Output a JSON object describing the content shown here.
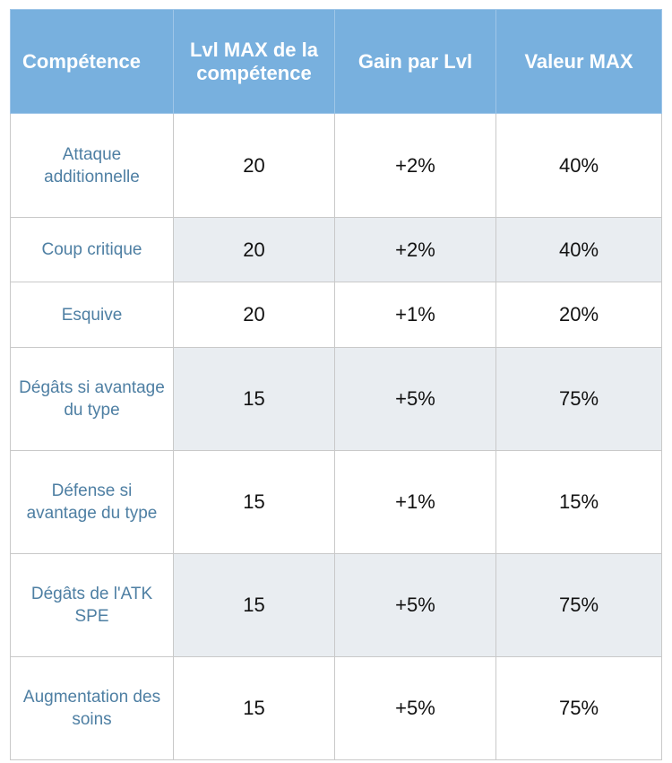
{
  "table": {
    "headers": [
      "Compétence",
      "Lvl MAX de la compétence",
      "Gain par Lvl",
      "Valeur MAX"
    ],
    "rows": [
      {
        "skill": "Attaque additionnelle",
        "lvl_max": "20",
        "gain": "+2%",
        "max_value": "40%"
      },
      {
        "skill": "Coup critique",
        "lvl_max": "20",
        "gain": "+2%",
        "max_value": "40%"
      },
      {
        "skill": "Esquive",
        "lvl_max": "20",
        "gain": "+1%",
        "max_value": "20%"
      },
      {
        "skill": "Dégâts si avantage du type",
        "lvl_max": "15",
        "gain": "+5%",
        "max_value": "75%"
      },
      {
        "skill": "Défense si avantage du type",
        "lvl_max": "15",
        "gain": "+1%",
        "max_value": "15%"
      },
      {
        "skill": "Dégâts de l'ATK SPE",
        "lvl_max": "15",
        "gain": "+5%",
        "max_value": "75%"
      },
      {
        "skill": "Augmentation des soins",
        "lvl_max": "15",
        "gain": "+5%",
        "max_value": "75%"
      }
    ]
  },
  "colors": {
    "header_bg": "#78b0de",
    "header_text": "#ffffff",
    "skill_text": "#4e7fa3",
    "shaded_row_bg": "#e9edf1",
    "border": "#c9c9c9"
  }
}
